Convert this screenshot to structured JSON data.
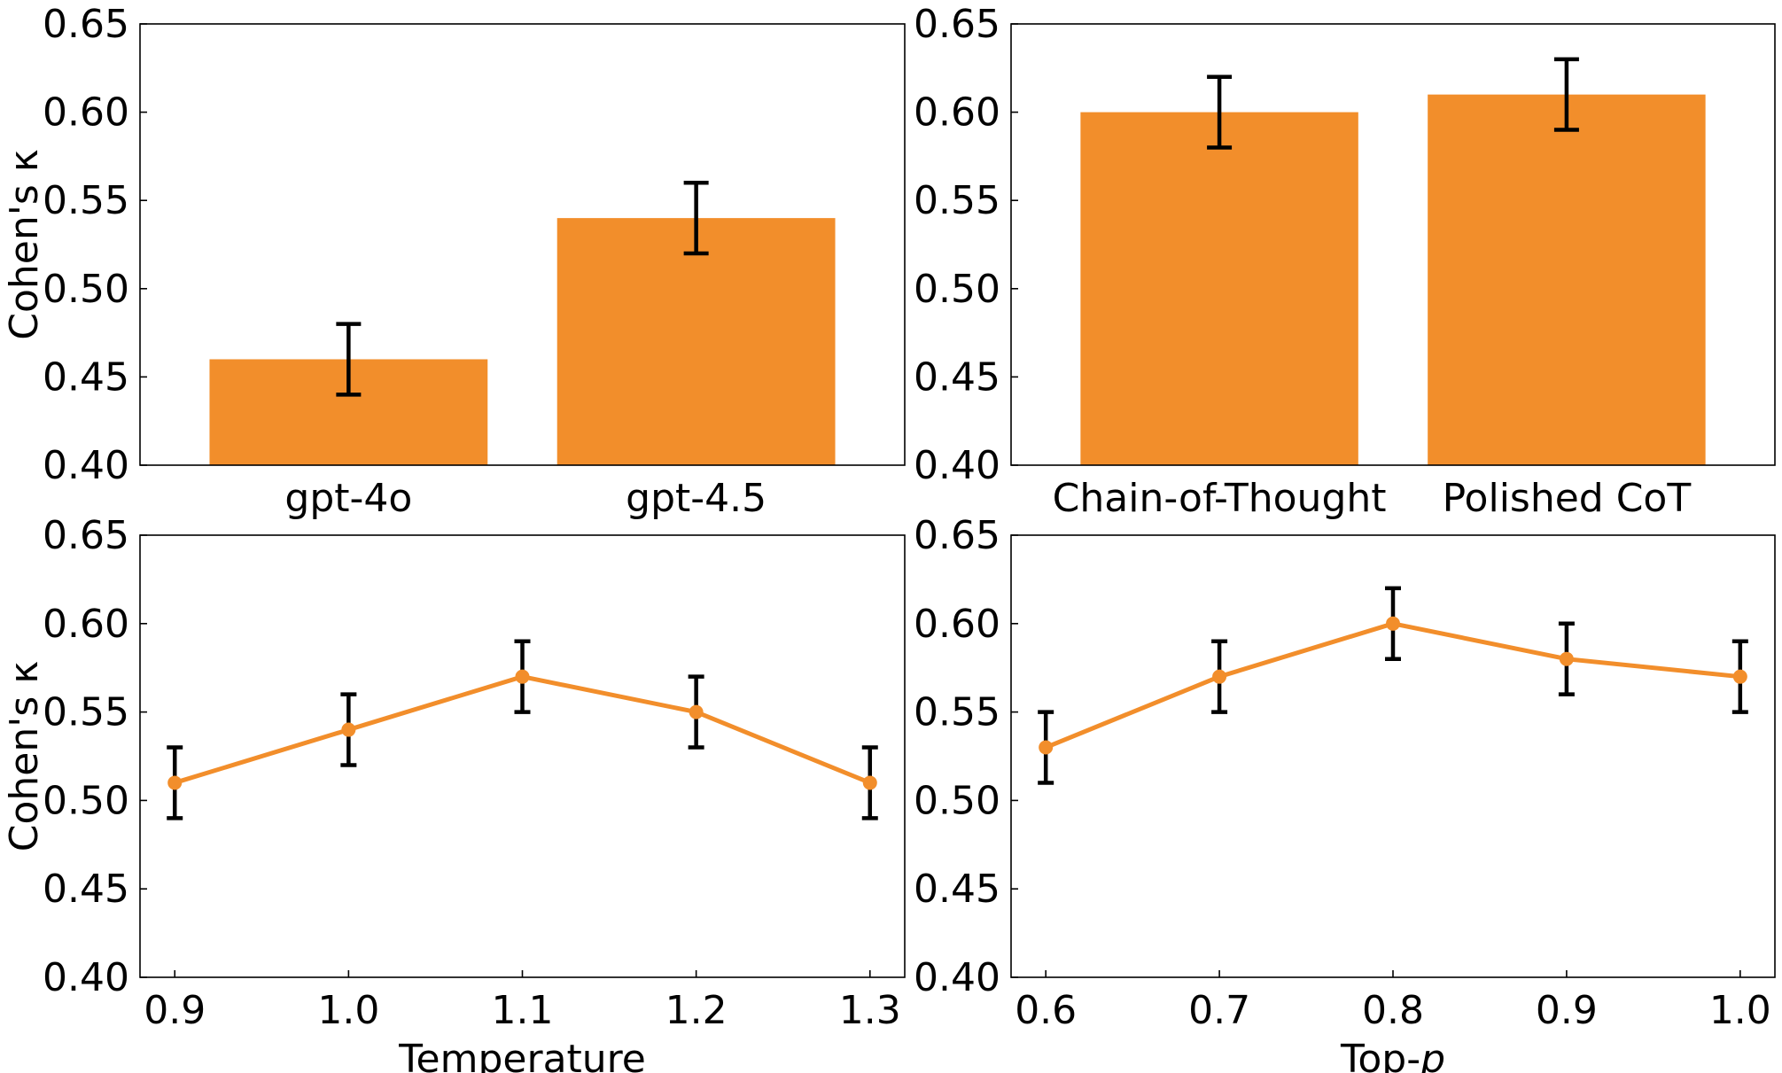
{
  "colors": {
    "accent": "#f28e2b",
    "errorbar": "#000000"
  },
  "chart_data": [
    {
      "type": "bar",
      "categories": [
        "gpt-4o",
        "gpt-4.5"
      ],
      "values": [
        0.46,
        0.54
      ],
      "errors": [
        0.02,
        0.02
      ],
      "title": "",
      "xlabel": "",
      "ylabel": "Cohen's κ",
      "ylim": [
        0.4,
        0.65
      ],
      "yticks": [
        "0.40",
        "0.45",
        "0.50",
        "0.55",
        "0.60",
        "0.65"
      ]
    },
    {
      "type": "bar",
      "categories": [
        "Chain-of-Thought",
        "Polished CoT"
      ],
      "values": [
        0.6,
        0.61
      ],
      "errors": [
        0.02,
        0.02
      ],
      "title": "",
      "xlabel": "",
      "ylabel": "",
      "ylim": [
        0.4,
        0.65
      ],
      "yticks": [
        "0.40",
        "0.45",
        "0.50",
        "0.55",
        "0.60",
        "0.65"
      ]
    },
    {
      "type": "line",
      "x": [
        0.9,
        1.0,
        1.1,
        1.2,
        1.3
      ],
      "xticks": [
        "0.9",
        "1.0",
        "1.1",
        "1.2",
        "1.3"
      ],
      "values": [
        0.51,
        0.54,
        0.57,
        0.55,
        0.51
      ],
      "errors": [
        0.02,
        0.02,
        0.02,
        0.02,
        0.02
      ],
      "title": "",
      "xlabel": "Temperature",
      "ylabel": "Cohen's κ",
      "xlim": [
        0.88,
        1.32
      ],
      "ylim": [
        0.4,
        0.65
      ],
      "yticks": [
        "0.40",
        "0.45",
        "0.50",
        "0.55",
        "0.60",
        "0.65"
      ]
    },
    {
      "type": "line",
      "x": [
        0.6,
        0.7,
        0.8,
        0.9,
        1.0
      ],
      "xticks": [
        "0.6",
        "0.7",
        "0.8",
        "0.9",
        "1.0"
      ],
      "values": [
        0.53,
        0.57,
        0.6,
        0.58,
        0.57
      ],
      "errors": [
        0.02,
        0.02,
        0.02,
        0.02,
        0.02
      ],
      "title": "",
      "xlabel": "Top-p",
      "xlabel_parts": [
        "Top-",
        "p"
      ],
      "ylabel": "",
      "xlim": [
        0.58,
        1.02
      ],
      "ylim": [
        0.4,
        0.65
      ],
      "yticks": [
        "0.40",
        "0.45",
        "0.50",
        "0.55",
        "0.60",
        "0.65"
      ]
    }
  ]
}
